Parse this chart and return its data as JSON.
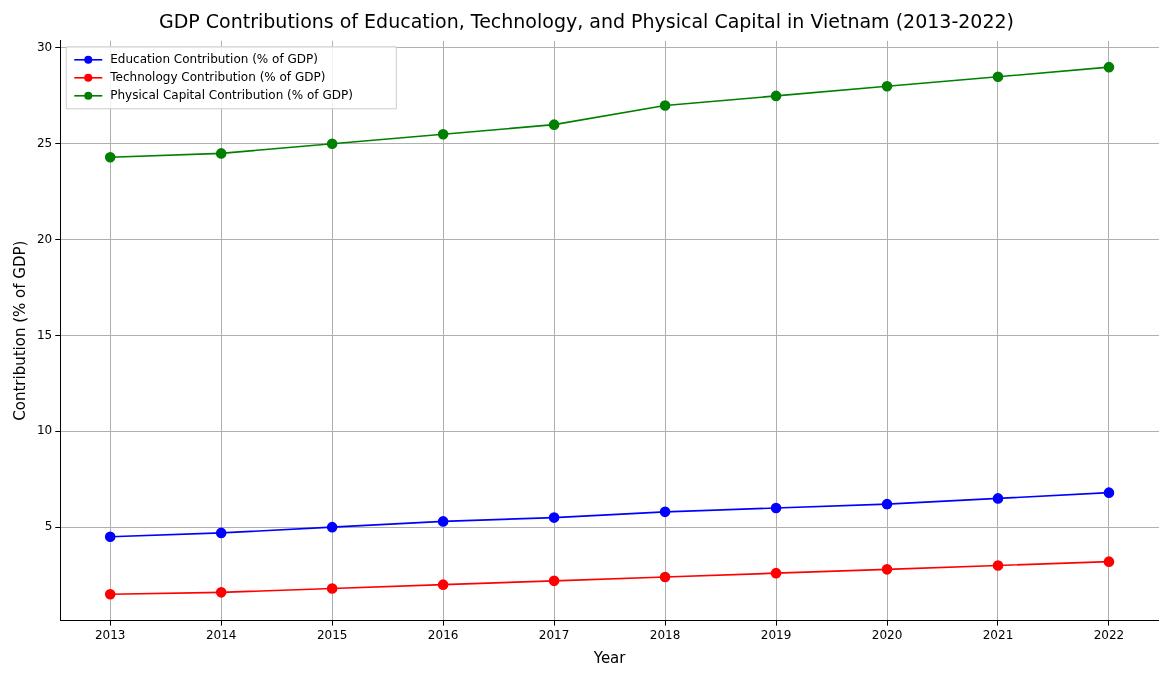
{
  "chart_data": {
    "type": "line",
    "title": "GDP Contributions of Education, Technology, and Physical Capital in Vietnam (2013-2022)",
    "xlabel": "Year",
    "ylabel": "Contribution (% of GDP)",
    "x": [
      2013,
      2014,
      2015,
      2016,
      2017,
      2018,
      2019,
      2020,
      2021,
      2022
    ],
    "series": [
      {
        "name": "Education Contribution (% of GDP)",
        "color": "#0000ff",
        "values": [
          4.5,
          4.7,
          5.0,
          5.3,
          5.5,
          5.8,
          6.0,
          6.2,
          6.5,
          6.8
        ]
      },
      {
        "name": "Technology Contribution (% of GDP)",
        "color": "#ff0000",
        "values": [
          1.5,
          1.6,
          1.8,
          2.0,
          2.2,
          2.4,
          2.6,
          2.8,
          3.0,
          3.2
        ]
      },
      {
        "name": "Physical Capital Contribution (% of GDP)",
        "color": "#008000",
        "values": [
          24.3,
          24.5,
          25.0,
          25.5,
          26.0,
          27.0,
          27.5,
          28.0,
          28.5,
          29.0
        ]
      }
    ],
    "xlim": [
      2012.55,
      2022.45
    ],
    "xticks": [
      2013,
      2014,
      2015,
      2016,
      2017,
      2018,
      2019,
      2020,
      2021,
      2022
    ],
    "ylim": [
      0.125,
      30.375
    ],
    "yticks": [
      5,
      10,
      15,
      20,
      25,
      30
    ],
    "grid": true,
    "legend": "top left",
    "marker": "circle",
    "line_style": "solid"
  }
}
